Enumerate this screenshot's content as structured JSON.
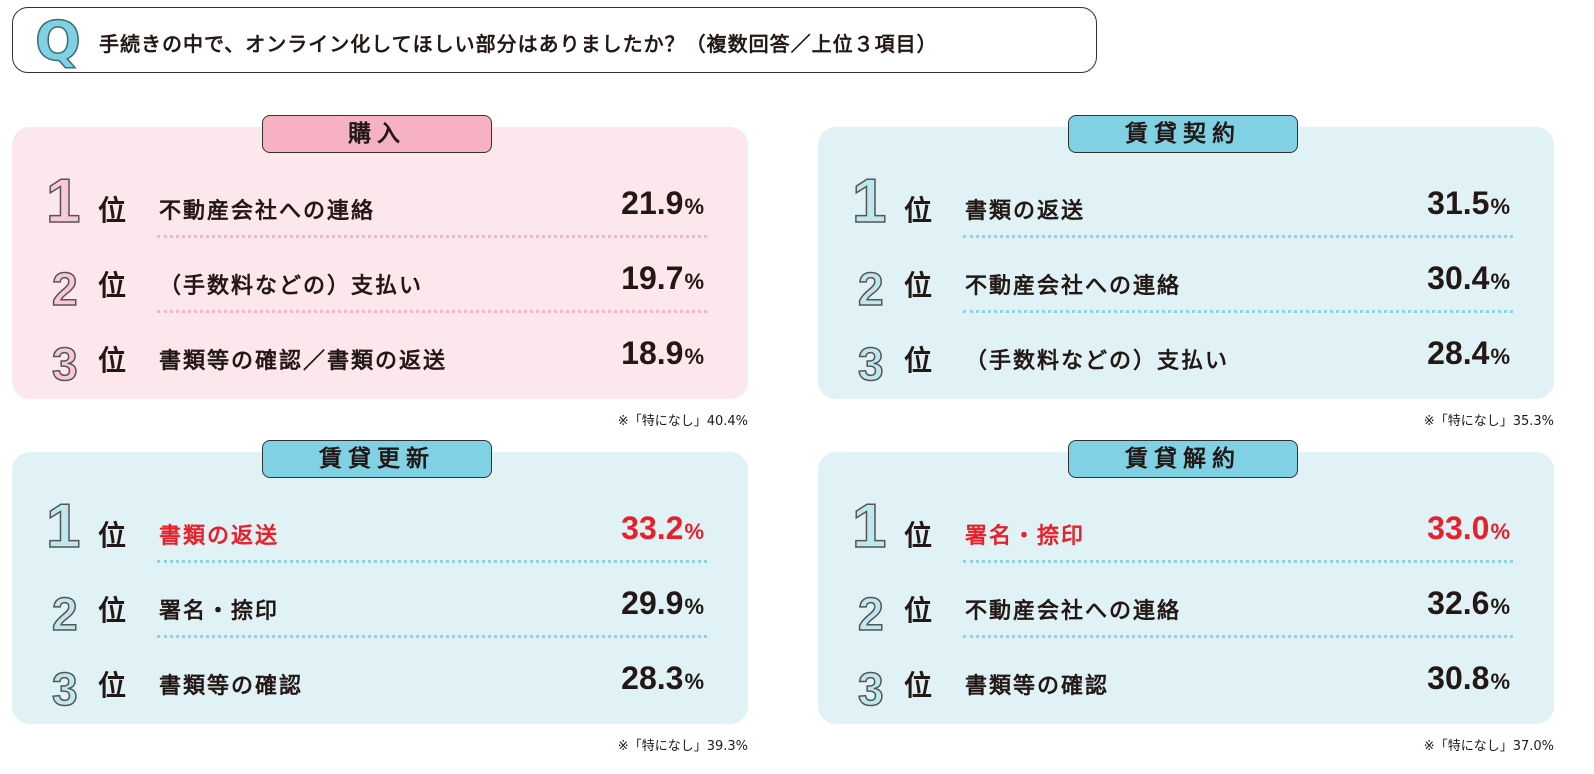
{
  "question": {
    "mark": "Q",
    "text": "手続きの中で、オンライン化してほしい部分はありましたか？（複数回答／上位３項目）"
  },
  "rank_suffix": "位",
  "unit": "%",
  "colors": {
    "pink_panel": "#fce8ec",
    "pink_tag": "#f6b2c2",
    "blue_panel": "#e0f2f6",
    "blue_tag": "#7fd1e3",
    "highlight": "#e8202a"
  },
  "panels": [
    {
      "title": "購入",
      "theme": "pink",
      "note": "※「特になし」40.4%",
      "items": [
        {
          "rank": "1",
          "label": "不動産会社への連絡",
          "value": "21.9",
          "highlight": false
        },
        {
          "rank": "2",
          "label": "（手数料などの）支払い",
          "value": "19.7",
          "highlight": false
        },
        {
          "rank": "3",
          "label": "書類等の確認／書類の返送",
          "value": "18.9",
          "highlight": false
        }
      ]
    },
    {
      "title": "賃貸契約",
      "theme": "blue",
      "note": "※「特になし」35.3%",
      "items": [
        {
          "rank": "1",
          "label": "書類の返送",
          "value": "31.5",
          "highlight": false
        },
        {
          "rank": "2",
          "label": "不動産会社への連絡",
          "value": "30.4",
          "highlight": false
        },
        {
          "rank": "3",
          "label": "（手数料などの）支払い",
          "value": "28.4",
          "highlight": false
        }
      ]
    },
    {
      "title": "賃貸更新",
      "theme": "blue",
      "note": "※「特になし」39.3%",
      "items": [
        {
          "rank": "1",
          "label": "書類の返送",
          "value": "33.2",
          "highlight": true
        },
        {
          "rank": "2",
          "label": "署名・捺印",
          "value": "29.9",
          "highlight": false
        },
        {
          "rank": "3",
          "label": "書類等の確認",
          "value": "28.3",
          "highlight": false
        }
      ]
    },
    {
      "title": "賃貸解約",
      "theme": "blue",
      "note": "※「特になし」37.0%",
      "items": [
        {
          "rank": "1",
          "label": "署名・捺印",
          "value": "33.0",
          "highlight": true
        },
        {
          "rank": "2",
          "label": "不動産会社への連絡",
          "value": "32.6",
          "highlight": false
        },
        {
          "rank": "3",
          "label": "書類等の確認",
          "value": "30.8",
          "highlight": false
        }
      ]
    }
  ]
}
